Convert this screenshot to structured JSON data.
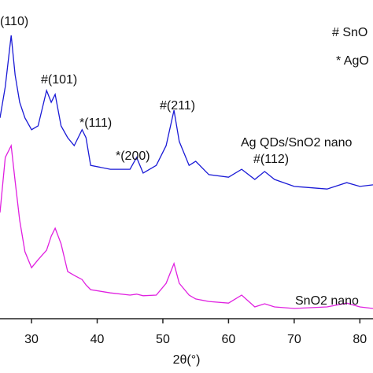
{
  "chart_data": {
    "type": "line",
    "x_label": "2θ(°)",
    "xlim": [
      25.2,
      82
    ],
    "xticks": [
      30,
      40,
      50,
      60,
      70,
      80
    ],
    "ylim": [
      0,
      100
    ],
    "x": [
      25.2,
      26,
      26.9,
      27.5,
      28.2,
      29,
      30,
      31,
      32.3,
      33,
      33.6,
      34.5,
      35.5,
      36.5,
      37.7,
      38.3,
      39,
      42,
      45,
      46,
      47,
      49,
      50.5,
      51.7,
      52.5,
      54,
      55,
      57,
      60,
      62,
      64,
      65.5,
      67,
      70,
      75,
      78,
      80,
      82
    ],
    "series": [
      {
        "name": "Ag QDs/SnO2 nano",
        "color": "#1a1ad6",
        "values": [
          63.0,
          72.8,
          88.9,
          76.5,
          67.9,
          63.0,
          59.3,
          60.5,
          71.6,
          67.9,
          70.4,
          60.5,
          56.8,
          54.3,
          59.3,
          56.8,
          48.1,
          46.9,
          46.9,
          50.6,
          45.7,
          48.1,
          54.3,
          65.4,
          55.6,
          48.1,
          49.4,
          45.2,
          44.4,
          46.9,
          43.7,
          46.2,
          43.7,
          41.5,
          40.7,
          42.7,
          41.5,
          42.0
        ]
      },
      {
        "name": "SnO2 nano",
        "color": "#e020e0",
        "values": [
          33.3,
          50.6,
          54.3,
          43.2,
          30.9,
          21.0,
          16.0,
          18.5,
          21.5,
          25.9,
          28.4,
          23.5,
          14.8,
          13.6,
          12.3,
          10.6,
          9.1,
          8.1,
          7.4,
          7.7,
          7.2,
          7.4,
          11.1,
          17.3,
          11.1,
          7.4,
          6.2,
          5.4,
          4.9,
          7.4,
          3.7,
          4.7,
          3.7,
          3.2,
          3.7,
          4.9,
          3.7,
          3.2
        ]
      }
    ],
    "annotations": [
      "(110)",
      "#(101)",
      "*(111)",
      "*(200)",
      "#(211)",
      "#(112)"
    ],
    "legend": [
      "# SnO",
      "* AgO"
    ]
  }
}
